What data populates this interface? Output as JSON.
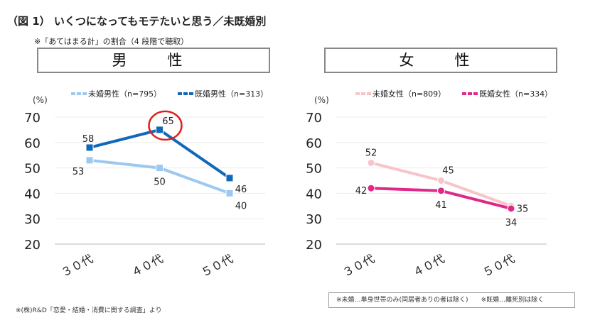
{
  "title": "（図 1） いくつになってもモテたいと思う／未既婚別",
  "subtitle": "※「あてはまる計」の割合（4 段階で聴取）",
  "source": "※(株)R&D「恋愛・結婚・消費に関する調査」より",
  "note": "※未婚…単身世帯のみ(同居者ありの者は除く)　　※既婚…離死別は除く",
  "chart_data": [
    {
      "type": "line",
      "panel_title": "男　性",
      "ylabel": "(%)",
      "categories": [
        "３０代",
        "４０代",
        "５０代"
      ],
      "ylim": [
        20,
        70
      ],
      "yticks": [
        70,
        60,
        50,
        40,
        30,
        20
      ],
      "grid": true,
      "legend": "top",
      "series": [
        {
          "name": "未婚男性（n=795）",
          "values": [
            53,
            50,
            40
          ],
          "color": "#9dc8f0",
          "marker": "square"
        },
        {
          "name": "既婚男性（n=313）",
          "values": [
            58,
            65,
            46
          ],
          "color": "#1068b8",
          "marker": "square"
        }
      ],
      "annotation": {
        "type": "circle",
        "series": 1,
        "category": "４０代",
        "color": "#e02020"
      }
    },
    {
      "type": "line",
      "panel_title": "女　性",
      "ylabel": "(%)",
      "categories": [
        "３０代",
        "４０代",
        "５０代"
      ],
      "ylim": [
        20,
        70
      ],
      "yticks": [
        70,
        60,
        50,
        40,
        30,
        20
      ],
      "grid": true,
      "legend": "top",
      "series": [
        {
          "name": "未婚女性（n=809）",
          "values": [
            52,
            45,
            35
          ],
          "color": "#f7c4c8",
          "marker": "circle"
        },
        {
          "name": "既婚女性（n=334）",
          "values": [
            42,
            41,
            34
          ],
          "color": "#e0288a",
          "marker": "circle"
        }
      ]
    }
  ]
}
